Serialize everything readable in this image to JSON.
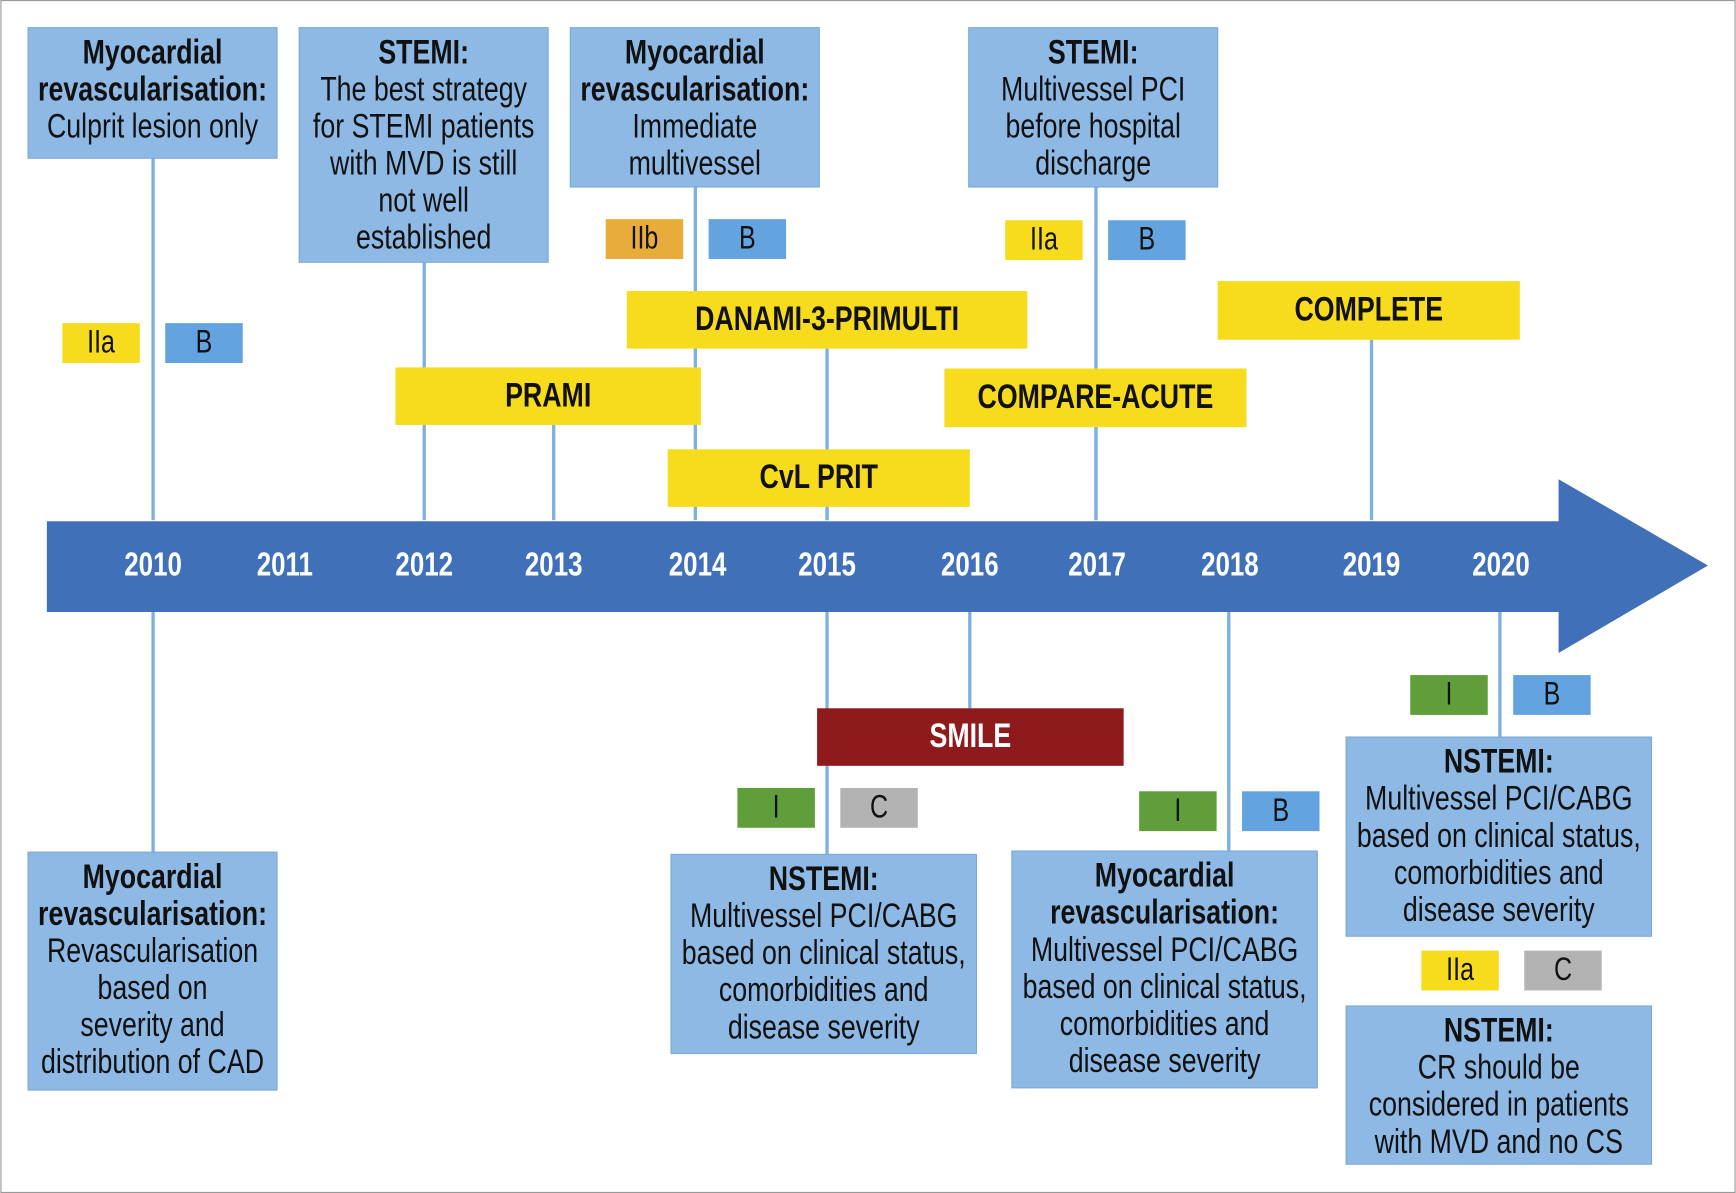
{
  "years": [
    "2010",
    "2011",
    "2012",
    "2013",
    "2014",
    "2015",
    "2016",
    "2017",
    "2018",
    "2019",
    "2020"
  ],
  "guidelines": [
    {
      "title": [
        "Myocardial",
        "revascularisation:"
      ],
      "body": [
        "Culprit lesion only"
      ],
      "badges": [
        {
          "label": "IIa",
          "color": "#f7dc1e"
        },
        {
          "label": "B",
          "color": "#62a3e0"
        }
      ]
    },
    {
      "title": [
        "STEMI:"
      ],
      "body": [
        "The best strategy",
        "for STEMI patients",
        "with MVD is still",
        "not well",
        "established"
      ],
      "badges": []
    },
    {
      "title": [
        "Myocardial",
        "revascularisation:"
      ],
      "body": [
        "Immediate",
        "multivessel"
      ],
      "badges": [
        {
          "label": "IIb",
          "color": "#e8ac3a"
        },
        {
          "label": "B",
          "color": "#62a3e0"
        }
      ]
    },
    {
      "title": [
        "STEMI:"
      ],
      "body": [
        "Multivessel PCI",
        "before hospital",
        "discharge"
      ],
      "badges": [
        {
          "label": "IIa",
          "color": "#f7dc1e"
        },
        {
          "label": "B",
          "color": "#62a3e0"
        }
      ]
    },
    {
      "title": [
        "Myocardial",
        "revascularisation:"
      ],
      "body": [
        "Revascularisation",
        "based on",
        "severity and",
        "distribution of CAD"
      ],
      "badges": []
    },
    {
      "title": [
        "NSTEMI:"
      ],
      "body": [
        "Multivessel PCI/CABG",
        "based on clinical status,",
        "comorbidities and",
        "disease severity"
      ],
      "badges": [
        {
          "label": "I",
          "color": "#5f9e3a"
        },
        {
          "label": "C",
          "color": "#b3b3b3"
        }
      ]
    },
    {
      "title": [
        "Myocardial",
        "revascularisation:"
      ],
      "body": [
        "Multivessel PCI/CABG",
        "based on clinical status,",
        "comorbidities and",
        "disease severity"
      ],
      "badges": [
        {
          "label": "I",
          "color": "#5f9e3a"
        },
        {
          "label": "B",
          "color": "#62a3e0"
        }
      ]
    },
    {
      "title": [
        "NSTEMI:"
      ],
      "body": [
        "Multivessel PCI/CABG",
        "based on clinical status,",
        "comorbidities and",
        "disease severity"
      ],
      "badges": [
        {
          "label": "I",
          "color": "#5f9e3a"
        },
        {
          "label": "B",
          "color": "#62a3e0"
        }
      ]
    },
    {
      "title": [
        "NSTEMI:"
      ],
      "body": [
        "CR should be",
        "considered in patients",
        "with MVD and no CS"
      ],
      "badges": [
        {
          "label": "IIa",
          "color": "#f7dc1e"
        },
        {
          "label": "C",
          "color": "#b3b3b3"
        }
      ]
    }
  ],
  "trials": [
    {
      "name": "DANAMI-3-PRIMULTI",
      "color": "#f7dc1e",
      "text_color": "#111"
    },
    {
      "name": "PRAMI",
      "color": "#f7dc1e",
      "text_color": "#111"
    },
    {
      "name": "CvL PRIT",
      "color": "#f7dc1e",
      "text_color": "#111"
    },
    {
      "name": "COMPLETE",
      "color": "#f7dc1e",
      "text_color": "#111"
    },
    {
      "name": "COMPARE-ACUTE",
      "color": "#f7dc1e",
      "text_color": "#111"
    },
    {
      "name": "SMILE",
      "color": "#8e1a1b",
      "text_color": "#fff"
    }
  ]
}
